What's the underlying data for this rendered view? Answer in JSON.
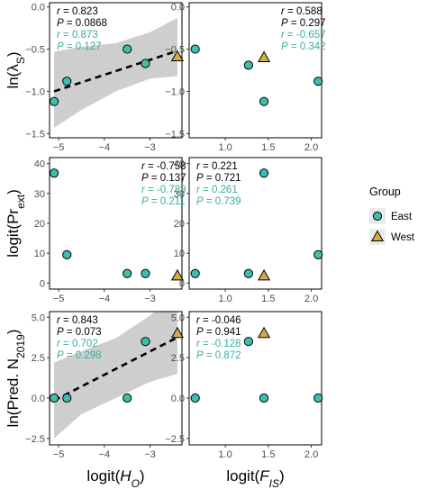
{
  "colors": {
    "east_fill": "#3dbfad",
    "west_fill": "#d4a94a",
    "stat_black": "#000000",
    "stat_teal": "#3aaea0",
    "band": "#bdbdbd"
  },
  "legend": {
    "title": "Group",
    "items": [
      {
        "label": "East",
        "shape": "circle"
      },
      {
        "label": "West",
        "shape": "triangle"
      }
    ]
  },
  "x_axis_labels": [
    {
      "base": "logit(",
      "ital": "H",
      "sub": "O",
      "close": ")"
    },
    {
      "base": "logit(",
      "ital": "F",
      "sub": "IS",
      "close": ")"
    }
  ],
  "y_axis_labels": [
    {
      "base": "ln(λ",
      "sub": "S",
      "close": ")"
    },
    {
      "base": "logit(Pr",
      "sub": "ext",
      "close": ")"
    },
    {
      "base": "ln(Pred. N",
      "sub": "2019",
      "close": ")"
    }
  ],
  "chart_data": [
    {
      "type": "scatter",
      "row": 0,
      "col": 0,
      "xlim": [
        -5.2,
        -2.3
      ],
      "ylim": [
        -1.55,
        0.05
      ],
      "xticks": [
        -5,
        -4,
        -3
      ],
      "xtick_labels": [
        "−5",
        "−4",
        "−3"
      ],
      "yticks": [
        0.0,
        -0.5,
        -1.0,
        -1.5
      ],
      "ytick_labels": [
        "0.0",
        "−0.5",
        "−1.0",
        "−1.5"
      ],
      "show_xticks": true,
      "east": [
        [
          -5.1,
          -1.12
        ],
        [
          -4.82,
          -0.88
        ],
        [
          -3.5,
          -0.5
        ],
        [
          -3.1,
          -0.67
        ]
      ],
      "west": [
        [
          -2.4,
          -0.59
        ]
      ],
      "fit": {
        "x0": -5.1,
        "y0": -1.0,
        "x1": -2.4,
        "y1": -0.52
      },
      "band": {
        "xs": [
          -5.1,
          -4.5,
          -3.75,
          -3.0,
          -2.4
        ],
        "upper": [
          -0.53,
          -0.47,
          -0.43,
          -0.3,
          -0.13
        ],
        "lower": [
          -1.43,
          -1.22,
          -1.0,
          -0.85,
          -0.82
        ]
      },
      "stats": [
        {
          "label": "r",
          "value": "0.823",
          "color": "stat_black"
        },
        {
          "label": "P",
          "value": "0.0868",
          "color": "stat_black"
        },
        {
          "label": "r",
          "value": "0.873",
          "color": "stat_teal"
        },
        {
          "label": "P",
          "value": "0.127",
          "color": "stat_teal"
        }
      ],
      "stats_pos": "left"
    },
    {
      "type": "scatter",
      "row": 0,
      "col": 1,
      "xlim": [
        0.58,
        2.12
      ],
      "ylim": [
        -1.55,
        0.05
      ],
      "xticks": [
        1.0,
        1.5,
        2.0
      ],
      "xtick_labels": [
        "1.0",
        "1.5",
        "2.0"
      ],
      "yticks": [
        0.0,
        -0.5,
        -1.0,
        -1.5
      ],
      "ytick_labels": [
        "0.0",
        "−0.5",
        "−1.0",
        "−1.5"
      ],
      "show_xticks": true,
      "east": [
        [
          0.65,
          -0.5
        ],
        [
          1.27,
          -0.69
        ],
        [
          1.45,
          -1.12
        ],
        [
          2.08,
          -0.88
        ]
      ],
      "west": [
        [
          1.45,
          -0.6
        ]
      ],
      "stats": [
        {
          "label": "r",
          "value": "0.588",
          "color": "stat_black"
        },
        {
          "label": "P",
          "value": "0.297",
          "color": "stat_black"
        },
        {
          "label": "r",
          "value": "-0.657",
          "color": "stat_teal"
        },
        {
          "label": "P",
          "value": "0.342",
          "color": "stat_teal"
        }
      ],
      "stats_pos": "right"
    },
    {
      "type": "scatter",
      "row": 1,
      "col": 0,
      "xlim": [
        -5.2,
        -2.3
      ],
      "ylim": [
        -2,
        42
      ],
      "xticks": [
        -5,
        -4,
        -3
      ],
      "xtick_labels": [
        "−5",
        "−4",
        "−3"
      ],
      "yticks": [
        0,
        10,
        20,
        30,
        40
      ],
      "ytick_labels": [
        "0",
        "10",
        "20",
        "30",
        "40"
      ],
      "show_xticks": true,
      "east": [
        [
          -5.1,
          36.8
        ],
        [
          -4.82,
          9.5
        ],
        [
          -3.5,
          3.2
        ],
        [
          -3.1,
          3.2
        ]
      ],
      "west": [
        [
          -2.4,
          2.4
        ]
      ],
      "stats": [
        {
          "label": "r",
          "value": "-0.758",
          "color": "stat_black"
        },
        {
          "label": "P",
          "value": "0.137",
          "color": "stat_black"
        },
        {
          "label": "r",
          "value": "-0.789",
          "color": "stat_teal"
        },
        {
          "label": "P",
          "value": "0.211",
          "color": "stat_teal"
        }
      ],
      "stats_pos": "right"
    },
    {
      "type": "scatter",
      "row": 1,
      "col": 1,
      "xlim": [
        0.58,
        2.12
      ],
      "ylim": [
        -2,
        42
      ],
      "xticks": [
        1.0,
        1.5,
        2.0
      ],
      "xtick_labels": [
        "1.0",
        "1.5",
        "2.0"
      ],
      "yticks": [
        0,
        10,
        20,
        30,
        40
      ],
      "ytick_labels": [
        "0",
        "10",
        "20",
        "30",
        "40"
      ],
      "show_xticks": true,
      "east": [
        [
          0.65,
          3.2
        ],
        [
          1.27,
          3.2
        ],
        [
          1.45,
          36.8
        ],
        [
          2.08,
          9.5
        ]
      ],
      "west": [
        [
          1.45,
          2.4
        ]
      ],
      "stats": [
        {
          "label": "r",
          "value": "0.221",
          "color": "stat_black"
        },
        {
          "label": "P",
          "value": "0.721",
          "color": "stat_black"
        },
        {
          "label": "r",
          "value": "0.261",
          "color": "stat_teal"
        },
        {
          "label": "P",
          "value": "0.739",
          "color": "stat_teal"
        }
      ],
      "stats_pos": "left"
    },
    {
      "type": "scatter",
      "row": 2,
      "col": 0,
      "xlim": [
        -5.2,
        -2.3
      ],
      "ylim": [
        -2.9,
        5.35
      ],
      "xticks": [
        -5,
        -4,
        -3
      ],
      "xtick_labels": [
        "−5",
        "−4",
        "−3"
      ],
      "yticks": [
        5.0,
        2.5,
        0.0,
        -2.5
      ],
      "ytick_labels": [
        "5.0",
        "2.5",
        "0.0",
        "−2.5"
      ],
      "show_xticks": true,
      "east": [
        [
          -5.1,
          0.0
        ],
        [
          -4.82,
          0.0
        ],
        [
          -3.5,
          0.0
        ],
        [
          -3.1,
          3.5
        ]
      ],
      "west": [
        [
          -2.4,
          4.0
        ]
      ],
      "fit": {
        "x0": -5.1,
        "y0": -0.15,
        "x1": -2.4,
        "y1": 3.75
      },
      "band": {
        "xs": [
          -5.1,
          -4.5,
          -3.75,
          -3.0,
          -2.4
        ],
        "upper": [
          2.2,
          2.9,
          3.7,
          5.1,
          6.6
        ],
        "lower": [
          -2.5,
          -1.0,
          0.0,
          1.0,
          1.5
        ]
      },
      "stats": [
        {
          "label": "r",
          "value": "0.843",
          "color": "stat_black"
        },
        {
          "label": "P",
          "value": "0.073",
          "color": "stat_black"
        },
        {
          "label": "r",
          "value": "0.702",
          "color": "stat_teal"
        },
        {
          "label": "P",
          "value": "0.298",
          "color": "stat_teal"
        }
      ],
      "stats_pos": "left"
    },
    {
      "type": "scatter",
      "row": 2,
      "col": 1,
      "xlim": [
        0.58,
        2.12
      ],
      "ylim": [
        -2.9,
        5.35
      ],
      "xticks": [
        1.0,
        1.5,
        2.0
      ],
      "xtick_labels": [
        "1.0",
        "1.5",
        "2.0"
      ],
      "yticks": [
        5.0,
        2.5,
        0.0,
        -2.5
      ],
      "ytick_labels": [
        "5.0",
        "2.5",
        "0.0",
        "−2.5"
      ],
      "show_xticks": true,
      "east": [
        [
          0.65,
          0.0
        ],
        [
          1.27,
          3.5
        ],
        [
          1.45,
          0.0
        ],
        [
          2.08,
          0.0
        ]
      ],
      "west": [
        [
          1.45,
          4.0
        ]
      ],
      "stats": [
        {
          "label": "r",
          "value": "-0.046",
          "color": "stat_black"
        },
        {
          "label": "P",
          "value": "0.941",
          "color": "stat_black"
        },
        {
          "label": "r",
          "value": "-0.128",
          "color": "stat_teal"
        },
        {
          "label": "P",
          "value": "0.872",
          "color": "stat_teal"
        }
      ],
      "stats_pos": "left"
    }
  ]
}
